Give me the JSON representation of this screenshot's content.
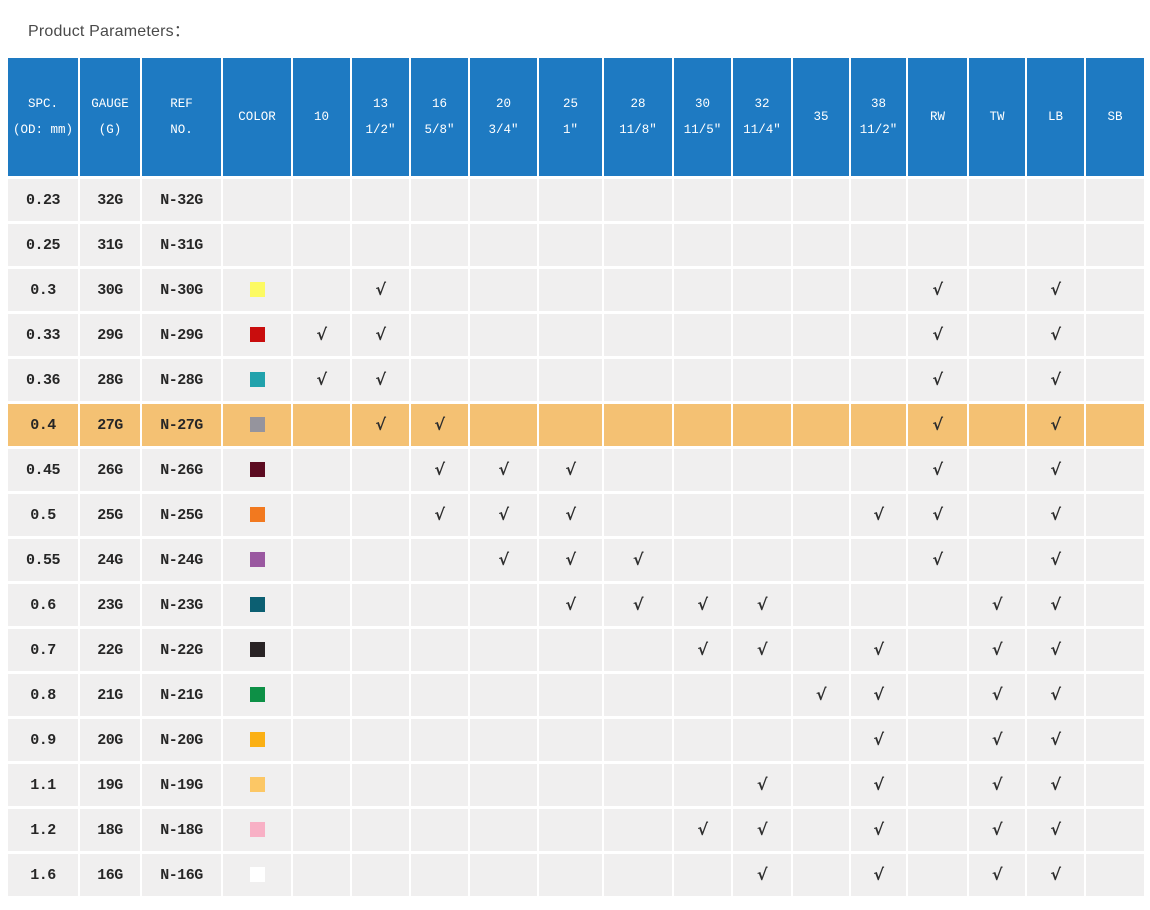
{
  "page": {
    "title": "Product Parameters："
  },
  "colors": {
    "header_background": "#1e7ac2",
    "header_text": "#ffffff",
    "cell_background": "#f0efef",
    "highlight_row_background": "#f4c173",
    "body_text": "#262626"
  },
  "table": {
    "check_mark": "√",
    "headers": [
      {
        "id": "spc",
        "lines": [
          "SPC.",
          "(OD: mm)"
        ]
      },
      {
        "id": "gauge",
        "lines": [
          "GAUGE",
          "(G)"
        ]
      },
      {
        "id": "ref",
        "lines": [
          "REF",
          "NO."
        ]
      },
      {
        "id": "color",
        "lines": [
          "COLOR"
        ]
      },
      {
        "id": "10",
        "lines": [
          "10"
        ]
      },
      {
        "id": "13",
        "lines": [
          "13",
          "1/2″"
        ]
      },
      {
        "id": "16",
        "lines": [
          "16",
          "5/8″"
        ]
      },
      {
        "id": "20",
        "lines": [
          "20",
          "3/4″"
        ]
      },
      {
        "id": "25",
        "lines": [
          "25",
          "1″"
        ]
      },
      {
        "id": "28",
        "lines": [
          "28",
          "11/8″"
        ]
      },
      {
        "id": "30",
        "lines": [
          "30",
          "11/5″"
        ]
      },
      {
        "id": "32",
        "lines": [
          "32",
          "11/4″"
        ]
      },
      {
        "id": "35",
        "lines": [
          "35"
        ]
      },
      {
        "id": "38",
        "lines": [
          "38",
          "11/2″"
        ]
      },
      {
        "id": "RW",
        "lines": [
          "RW"
        ]
      },
      {
        "id": "TW",
        "lines": [
          "TW"
        ]
      },
      {
        "id": "LB",
        "lines": [
          "LB"
        ]
      },
      {
        "id": "SB",
        "lines": [
          "SB"
        ]
      }
    ],
    "rows": [
      {
        "spc": "0.23",
        "gauge": "32G",
        "ref": "N-32G",
        "color": null,
        "highlighted": false,
        "checks": []
      },
      {
        "spc": "0.25",
        "gauge": "31G",
        "ref": "N-31G",
        "color": null,
        "highlighted": false,
        "checks": []
      },
      {
        "spc": "0.3",
        "gauge": "30G",
        "ref": "N-30G",
        "color": "#fcfa62",
        "highlighted": false,
        "checks": [
          "13",
          "RW",
          "LB"
        ]
      },
      {
        "spc": "0.33",
        "gauge": "29G",
        "ref": "N-29G",
        "color": "#c90d0d",
        "highlighted": false,
        "checks": [
          "10",
          "13",
          "RW",
          "LB"
        ]
      },
      {
        "spc": "0.36",
        "gauge": "28G",
        "ref": "N-28G",
        "color": "#21a2ac",
        "highlighted": false,
        "checks": [
          "10",
          "13",
          "RW",
          "LB"
        ]
      },
      {
        "spc": "0.4",
        "gauge": "27G",
        "ref": "N-27G",
        "color": "#95949d",
        "highlighted": true,
        "checks": [
          "13",
          "16",
          "RW",
          "LB"
        ]
      },
      {
        "spc": "0.45",
        "gauge": "26G",
        "ref": "N-26G",
        "color": "#5c0b21",
        "highlighted": false,
        "checks": [
          "16",
          "20",
          "25",
          "RW",
          "LB"
        ]
      },
      {
        "spc": "0.5",
        "gauge": "25G",
        "ref": "N-25G",
        "color": "#f2791f",
        "highlighted": false,
        "checks": [
          "16",
          "20",
          "25",
          "38",
          "RW",
          "LB"
        ]
      },
      {
        "spc": "0.55",
        "gauge": "24G",
        "ref": "N-24G",
        "color": "#9a58a0",
        "highlighted": false,
        "checks": [
          "20",
          "25",
          "28",
          "RW",
          "LB"
        ]
      },
      {
        "spc": "0.6",
        "gauge": "23G",
        "ref": "N-23G",
        "color": "#0c5f72",
        "highlighted": false,
        "checks": [
          "25",
          "28",
          "30",
          "32",
          "TW",
          "LB"
        ]
      },
      {
        "spc": "0.7",
        "gauge": "22G",
        "ref": "N-22G",
        "color": "#292325",
        "highlighted": false,
        "checks": [
          "30",
          "32",
          "38",
          "TW",
          "LB"
        ]
      },
      {
        "spc": "0.8",
        "gauge": "21G",
        "ref": "N-21G",
        "color": "#0d9046",
        "highlighted": false,
        "checks": [
          "35",
          "38",
          "TW",
          "LB"
        ]
      },
      {
        "spc": "0.9",
        "gauge": "20G",
        "ref": "N-20G",
        "color": "#fbb014",
        "highlighted": false,
        "checks": [
          "38",
          "TW",
          "LB"
        ]
      },
      {
        "spc": "1.1",
        "gauge": "19G",
        "ref": "N-19G",
        "color": "#fcc765",
        "highlighted": false,
        "checks": [
          "32",
          "38",
          "TW",
          "LB"
        ]
      },
      {
        "spc": "1.2",
        "gauge": "18G",
        "ref": "N-18G",
        "color": "#f8b0c5",
        "highlighted": false,
        "checks": [
          "30",
          "32",
          "38",
          "TW",
          "LB"
        ]
      },
      {
        "spc": "1.6",
        "gauge": "16G",
        "ref": "N-16G",
        "color": "#ffffff",
        "highlighted": false,
        "checks": [
          "32",
          "38",
          "TW",
          "LB"
        ]
      }
    ]
  }
}
